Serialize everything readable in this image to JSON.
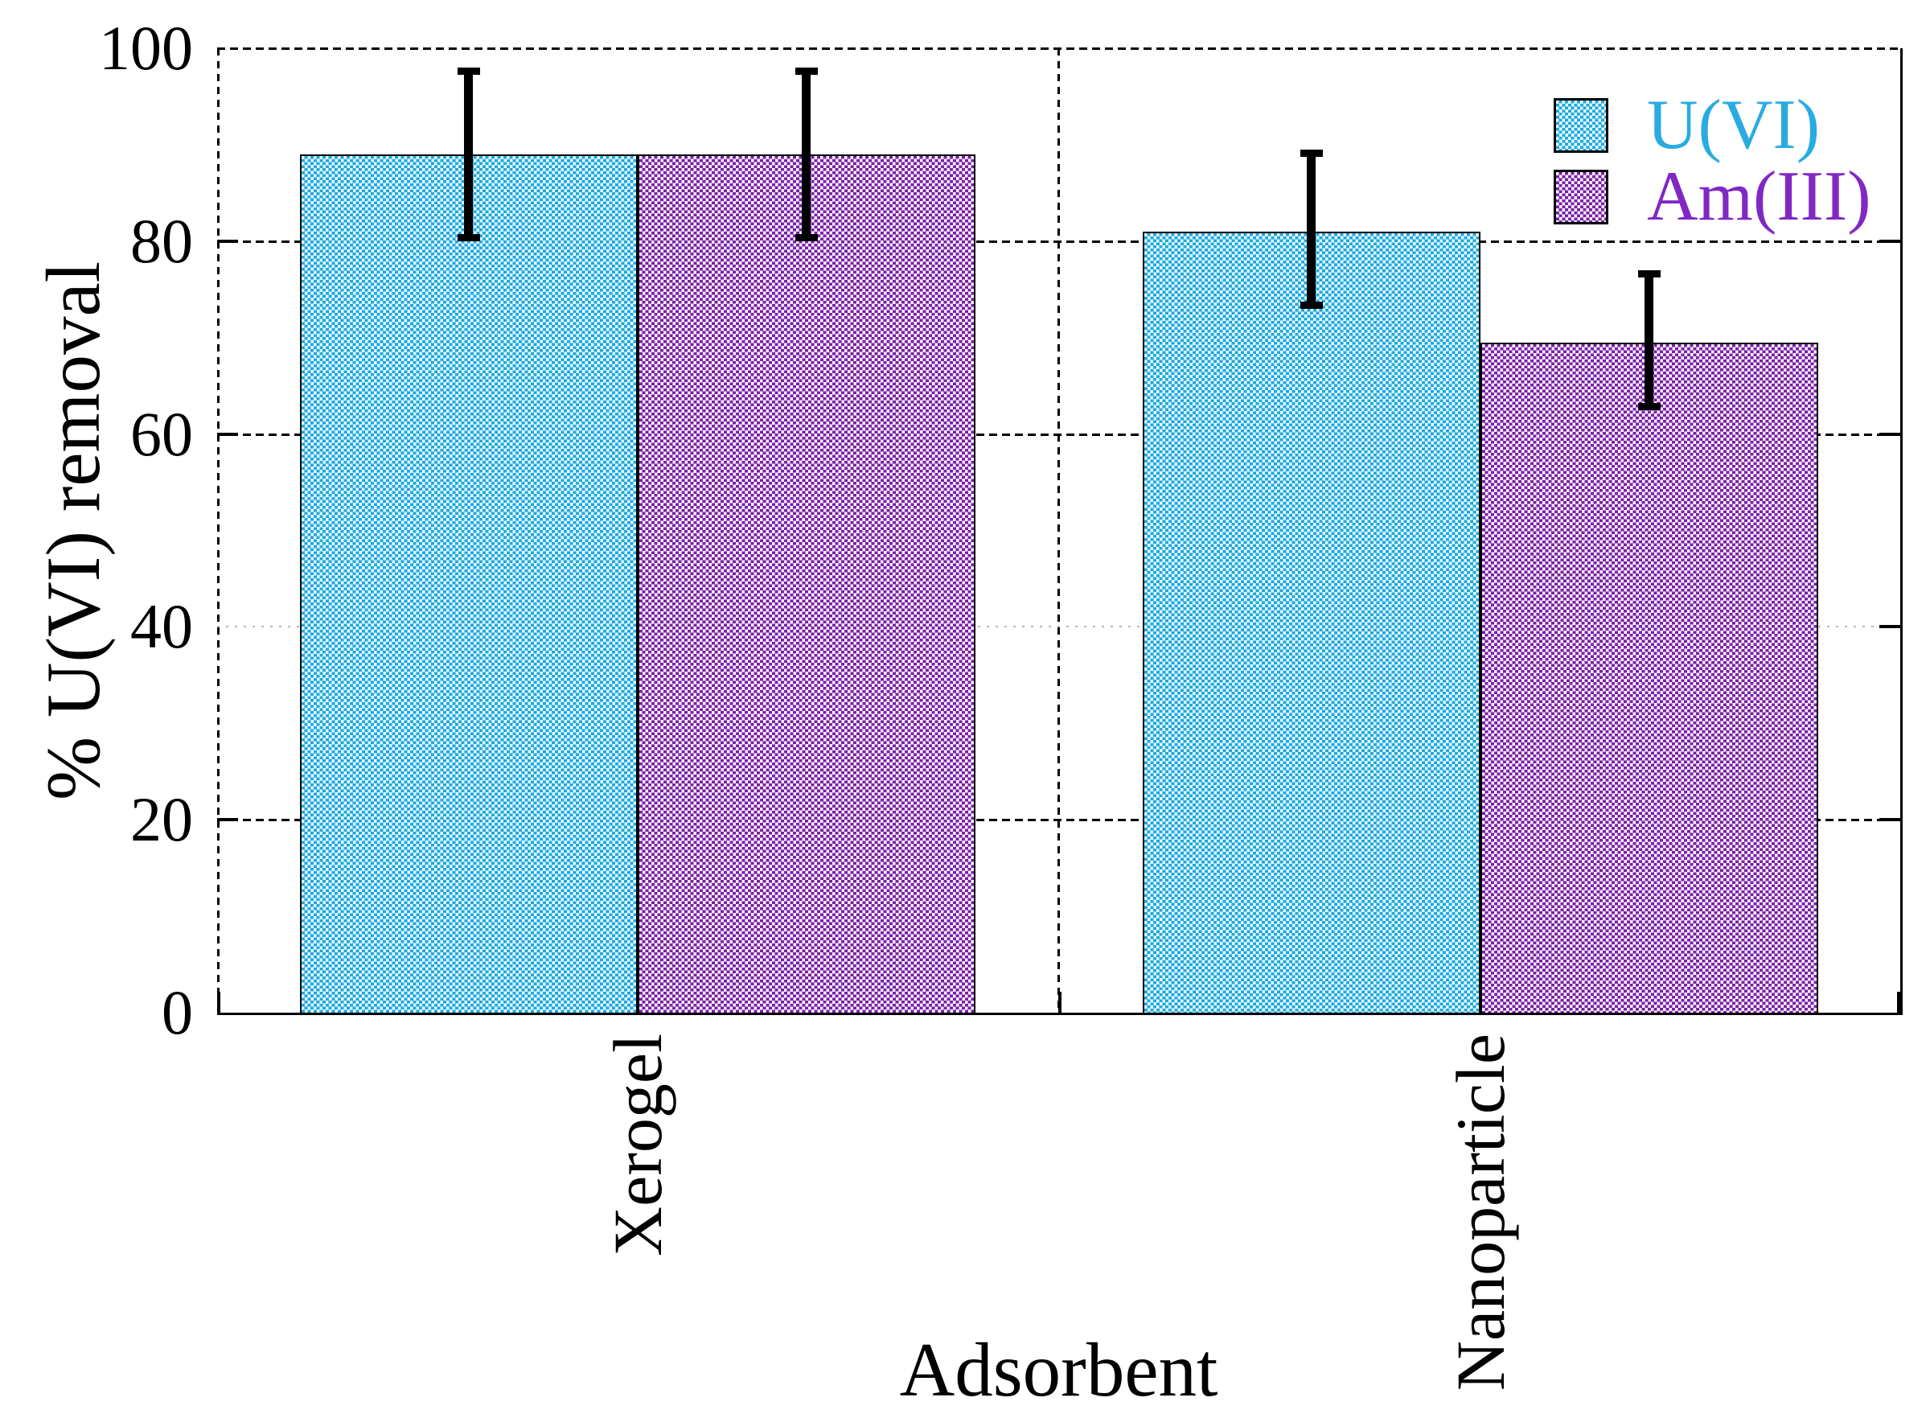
{
  "page": {
    "background": "#ffffff"
  },
  "chart_data": {
    "type": "bar",
    "title": "",
    "xlabel": "Adsorbent",
    "ylabel": "% U(VI) removal",
    "categories": [
      "Xerogel",
      "Nanoparticle"
    ],
    "series": [
      {
        "name": "U(VI)",
        "values": [
          89,
          81
        ],
        "err_low": [
          80,
          73
        ],
        "err_high": [
          98,
          89.5
        ],
        "fill_color": "#1ca8e0",
        "fill_bg": "#e7f9fd",
        "label_color": "#29abe2"
      },
      {
        "name": "Am(III)",
        "values": [
          89,
          69.5
        ],
        "err_low": [
          80,
          62.5
        ],
        "err_high": [
          98,
          77
        ],
        "fill_color": "#7a1fa8",
        "fill_bg": "#f8f2fb",
        "label_color": "#8128c4"
      }
    ],
    "ylim": [
      0,
      100
    ],
    "yticks": [
      0,
      20,
      40,
      60,
      80,
      100
    ],
    "grid": {
      "horizontal": "dashed black lines at 20/60/80/100, faint dotted at 40",
      "vertical": "dashed black line between category groups"
    },
    "legend_position": "top-right-inside",
    "bar_pattern": "checkerboard",
    "error_bar_color": "#000000"
  }
}
